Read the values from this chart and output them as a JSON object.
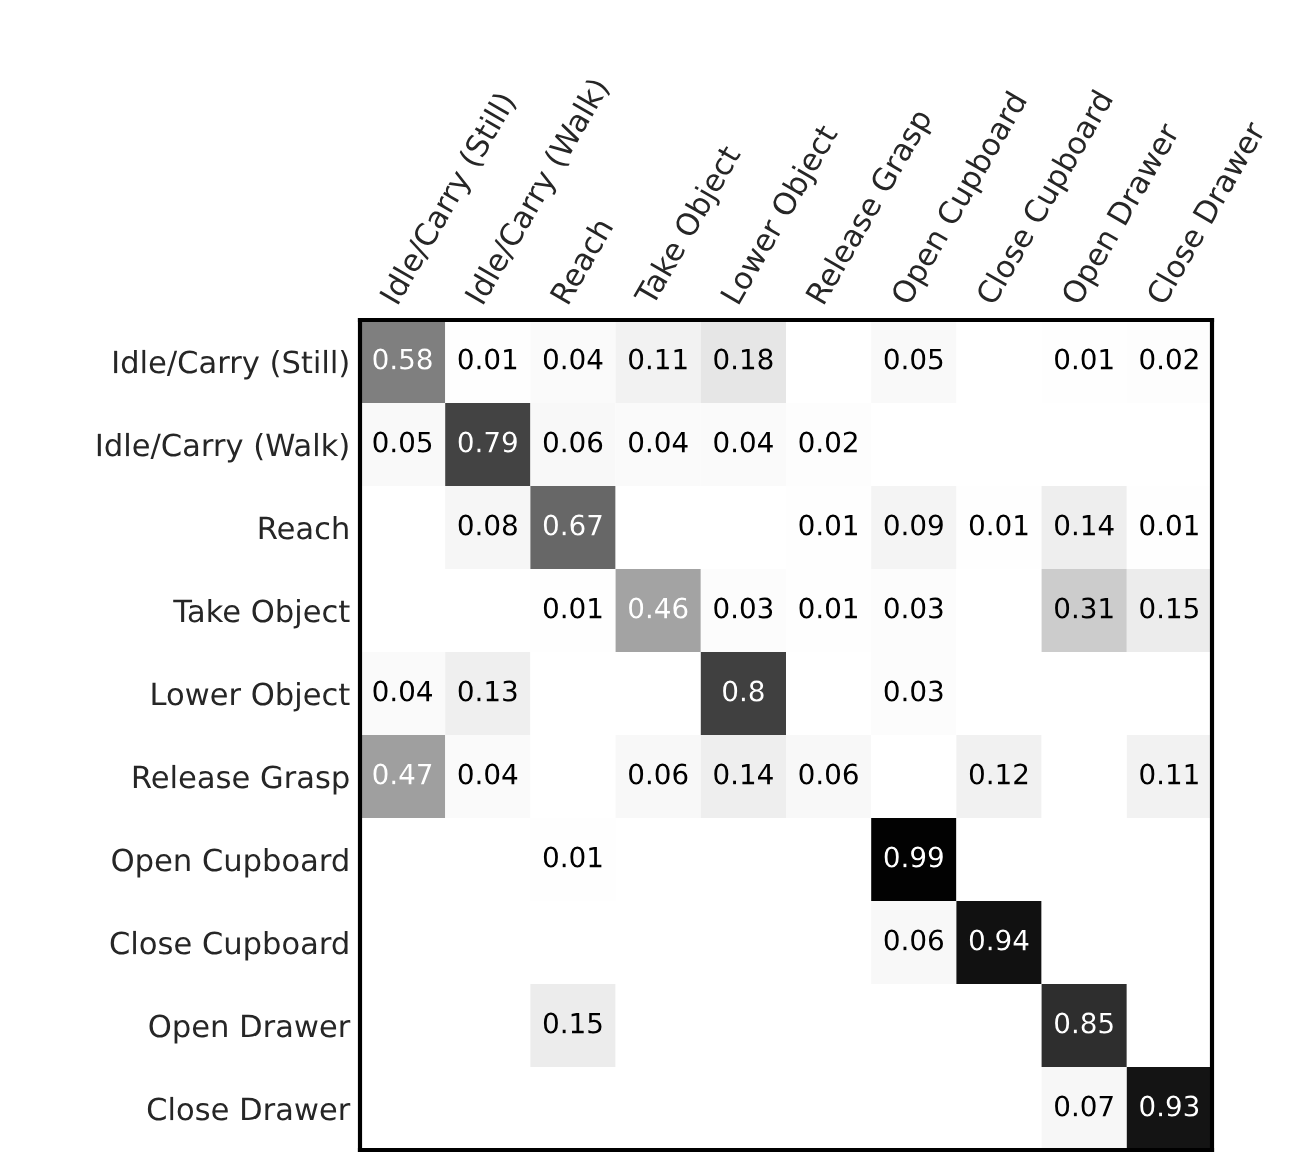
{
  "chart_data": {
    "type": "heatmap",
    "categories": [
      "Idle/Carry (Still)",
      "Idle/Carry (Walk)",
      "Reach",
      "Take Object",
      "Lower Object",
      "Release Grasp",
      "Open Cupboard",
      "Close Cupboard",
      "Open Drawer",
      "Close Drawer"
    ],
    "y_categories": [
      "Idle/Carry (Still)",
      "Idle/Carry (Walk)",
      "Reach",
      "Take Object",
      "Lower Object",
      "Release Grasp",
      "Open Cupboard",
      "Close Cupboard",
      "Open Drawer",
      "Close Drawer"
    ],
    "cells": [
      [
        0.58,
        0.01,
        0.04,
        0.11,
        0.18,
        null,
        0.05,
        null,
        0.01,
        0.02
      ],
      [
        0.05,
        0.79,
        0.06,
        0.04,
        0.04,
        0.02,
        null,
        null,
        null,
        null
      ],
      [
        null,
        0.08,
        0.67,
        null,
        null,
        0.01,
        0.09,
        0.01,
        0.14,
        0.01
      ],
      [
        null,
        null,
        0.01,
        0.46,
        0.03,
        0.01,
        0.03,
        null,
        0.31,
        0.15
      ],
      [
        0.04,
        0.13,
        null,
        null,
        0.8,
        null,
        0.03,
        null,
        null,
        null
      ],
      [
        0.47,
        0.04,
        null,
        0.06,
        0.14,
        0.06,
        null,
        0.12,
        null,
        0.11
      ],
      [
        null,
        null,
        0.01,
        null,
        null,
        null,
        0.99,
        null,
        null,
        null
      ],
      [
        null,
        null,
        null,
        null,
        null,
        null,
        0.06,
        0.94,
        null,
        null
      ],
      [
        null,
        null,
        0.15,
        null,
        null,
        null,
        null,
        null,
        0.85,
        null
      ],
      [
        null,
        null,
        null,
        null,
        null,
        null,
        null,
        null,
        0.07,
        0.93
      ]
    ],
    "data_labels": true
  }
}
